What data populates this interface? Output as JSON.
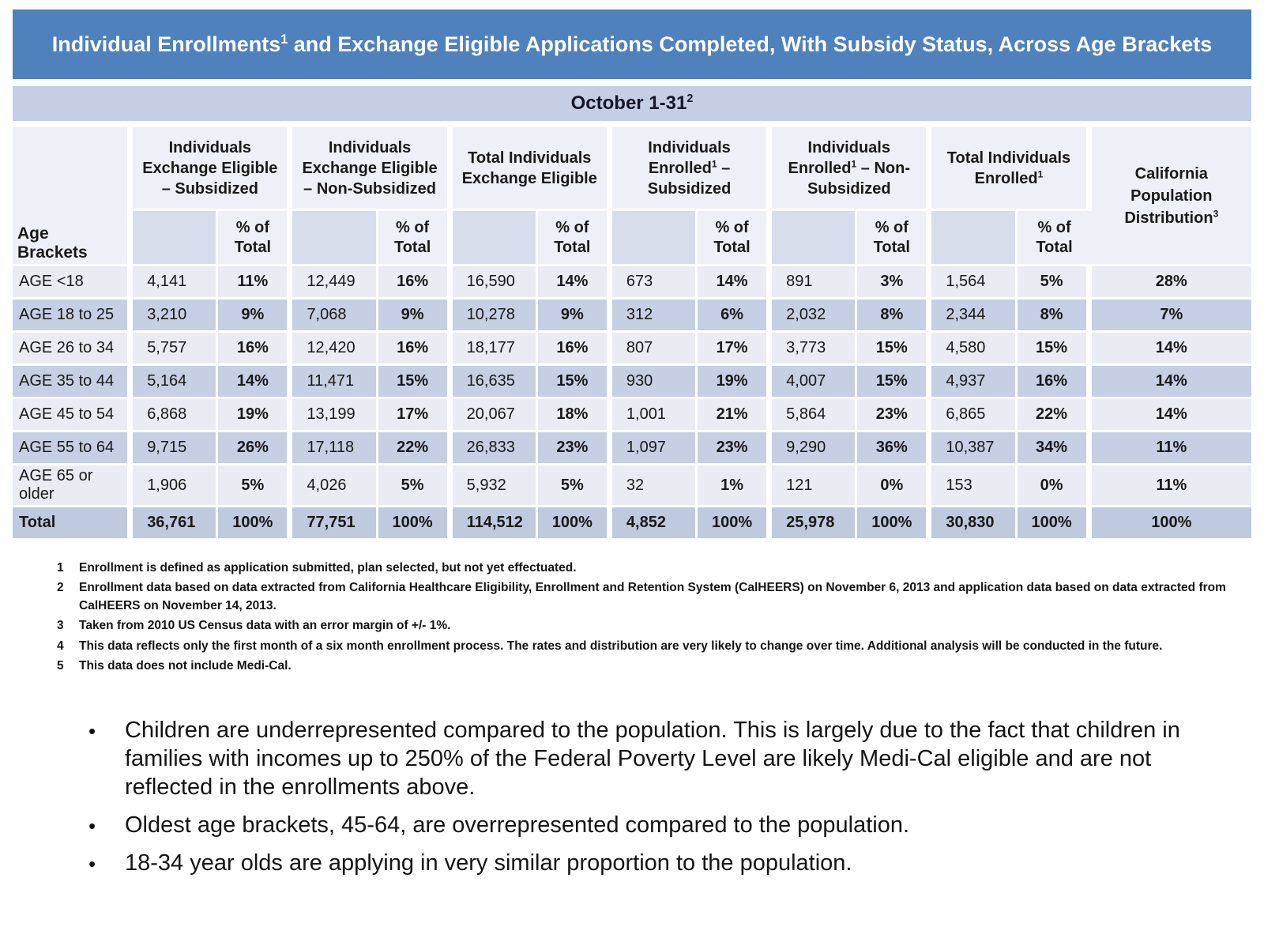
{
  "title": {
    "pre": "Individual Enrollments",
    "sup": "1",
    "post": " and Exchange Eligible Applications Completed, With Subsidy Status, Across Age Brackets"
  },
  "period": {
    "text": "October 1-31",
    "sup": "2"
  },
  "table": {
    "row_header_label": "Age Brackets",
    "pct_label": "% of Total",
    "groups": [
      {
        "pre": "Individuals Exchange Eligible – Subsidized",
        "sup": "",
        "post": ""
      },
      {
        "pre": "Individuals Exchange Eligible – Non-Subsidized",
        "sup": "",
        "post": ""
      },
      {
        "pre": "Total Individuals Exchange Eligible",
        "sup": "",
        "post": ""
      },
      {
        "pre": "Individuals Enrolled",
        "sup": "1",
        "post": " – Subsidized"
      },
      {
        "pre": "Individuals Enrolled",
        "sup": "1",
        "post": " – Non-Subsidized"
      },
      {
        "pre": "Total Individuals Enrolled",
        "sup": "1",
        "post": ""
      }
    ],
    "population_header": {
      "pre": "California Population Distribution",
      "sup": "3",
      "post": ""
    },
    "rows": [
      {
        "label": "AGE <18",
        "values": [
          "4,141",
          "11%",
          "12,449",
          "16%",
          "16,590",
          "14%",
          "673",
          "14%",
          "891",
          "3%",
          "1,564",
          "5%",
          "28%"
        ]
      },
      {
        "label": "AGE 18 to 25",
        "values": [
          "3,210",
          "9%",
          "7,068",
          "9%",
          "10,278",
          "9%",
          "312",
          "6%",
          "2,032",
          "8%",
          "2,344",
          "8%",
          "7%"
        ]
      },
      {
        "label": "AGE 26 to 34",
        "values": [
          "5,757",
          "16%",
          "12,420",
          "16%",
          "18,177",
          "16%",
          "807",
          "17%",
          "3,773",
          "15%",
          "4,580",
          "15%",
          "14%"
        ]
      },
      {
        "label": "AGE 35 to 44",
        "values": [
          "5,164",
          "14%",
          "11,471",
          "15%",
          "16,635",
          "15%",
          "930",
          "19%",
          "4,007",
          "15%",
          "4,937",
          "16%",
          "14%"
        ]
      },
      {
        "label": "AGE 45 to 54",
        "values": [
          "6,868",
          "19%",
          "13,199",
          "17%",
          "20,067",
          "18%",
          "1,001",
          "21%",
          "5,864",
          "23%",
          "6,865",
          "22%",
          "14%"
        ]
      },
      {
        "label": "AGE 55 to 64",
        "values": [
          "9,715",
          "26%",
          "17,118",
          "22%",
          "26,833",
          "23%",
          "1,097",
          "23%",
          "9,290",
          "36%",
          "10,387",
          "34%",
          "11%"
        ]
      },
      {
        "label": "AGE 65 or older",
        "values": [
          "1,906",
          "5%",
          "4,026",
          "5%",
          "5,932",
          "5%",
          "32",
          "1%",
          "121",
          "0%",
          "153",
          "0%",
          "11%"
        ]
      }
    ],
    "total_row": {
      "label": "Total",
      "values": [
        "36,761",
        "100%",
        "77,751",
        "100%",
        "114,512",
        "100%",
        "4,852",
        "100%",
        "25,978",
        "100%",
        "30,830",
        "100%",
        "100%"
      ]
    }
  },
  "footnotes": [
    {
      "num": "1",
      "text": "Enrollment is defined as application submitted, plan selected, but not yet effectuated."
    },
    {
      "num": "2",
      "text": "Enrollment data based on data extracted from California Healthcare Eligibility, Enrollment and Retention System (CalHEERS) on November 6, 2013 and application data based on data extracted from CalHEERS on November 14, 2013."
    },
    {
      "num": "3",
      "text": "Taken from 2010 US Census data with an error margin of +/- 1%."
    },
    {
      "num": "4",
      "text": "This data reflects only the first month of a six month enrollment process. The rates and distribution are very likely to change over time. Additional analysis will be conducted in the future."
    },
    {
      "num": "5",
      "text": "This data does not include Medi-Cal."
    }
  ],
  "bullets": [
    "Children are underrepresented compared to the population. This is largely due to the fact that children in families with incomes up to 250% of the Federal Poverty Level are likely Medi-Cal eligible and are not reflected in the enrollments above.",
    "Oldest age brackets, 45-64, are overrepresented compared to the population.",
    "18-34 year olds are applying in very similar proportion to the population."
  ]
}
